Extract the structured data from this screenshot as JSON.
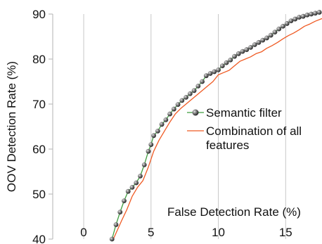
{
  "chart_data": {
    "type": "line",
    "title": "",
    "xlabel": "False Detection Rate (%)",
    "ylabel": "OOV Detection Rate (%)",
    "xlim": [
      -2.3,
      17.7
    ],
    "ylim": [
      40,
      90
    ],
    "xticks": [
      0,
      5,
      10,
      15
    ],
    "yticks": [
      40,
      50,
      60,
      70,
      80,
      90
    ],
    "grid": "vertical",
    "legend_position": "center-right",
    "series": [
      {
        "name": "Semantic filter",
        "color": "#3f9e3f",
        "marker": "sphere",
        "x": [
          2.1,
          2.4,
          2.7,
          3.0,
          3.3,
          3.6,
          3.9,
          4.2,
          4.5,
          4.8,
          5.0,
          5.2,
          5.5,
          5.8,
          6.1,
          6.4,
          6.7,
          7.0,
          7.3,
          7.6,
          7.9,
          8.2,
          8.5,
          8.8,
          9.1,
          9.4,
          9.7,
          10.0,
          10.3,
          10.6,
          10.9,
          11.2,
          11.5,
          11.8,
          12.1,
          12.4,
          12.7,
          13.0,
          13.3,
          13.6,
          13.9,
          14.2,
          14.5,
          14.8,
          15.1,
          15.4,
          15.7,
          16.0,
          16.3,
          16.6,
          16.9,
          17.2,
          17.5
        ],
        "y": [
          40.0,
          43.2,
          46.0,
          48.5,
          50.6,
          51.5,
          52.5,
          54.0,
          56.5,
          59.5,
          61.0,
          63.0,
          64.0,
          65.5,
          66.5,
          67.8,
          68.9,
          69.9,
          70.8,
          71.5,
          72.3,
          73.0,
          74.0,
          75.0,
          76.3,
          76.8,
          77.2,
          77.6,
          78.5,
          79.2,
          79.8,
          80.6,
          81.2,
          81.7,
          82.1,
          82.6,
          83.2,
          83.7,
          84.2,
          84.7,
          85.3,
          86.0,
          86.7,
          87.3,
          87.9,
          88.5,
          88.9,
          89.3,
          89.5,
          89.8,
          90.0,
          90.2,
          90.4
        ],
        "line_through_markers": true
      },
      {
        "name": "Combination of all features",
        "color": "#ef5a23",
        "marker": "none",
        "x": [
          2.2,
          2.8,
          3.2,
          3.6,
          4.0,
          4.4,
          4.8,
          5.2,
          5.6,
          6.0,
          6.4,
          6.8,
          7.2,
          7.6,
          8.0,
          8.4,
          8.8,
          9.2,
          9.6,
          10.0,
          10.4,
          10.8,
          11.2,
          11.6,
          12.0,
          12.4,
          12.8,
          13.2,
          13.6,
          14.0,
          14.4,
          14.8,
          15.2,
          15.6,
          16.0,
          16.4,
          16.8,
          17.2,
          17.7
        ],
        "y": [
          40.0,
          44.0,
          46.5,
          49.5,
          51.5,
          53.0,
          56.0,
          59.5,
          62.0,
          64.0,
          66.0,
          67.8,
          69.0,
          70.0,
          71.0,
          72.0,
          73.0,
          74.0,
          75.0,
          76.5,
          77.0,
          77.5,
          78.5,
          79.5,
          80.0,
          80.5,
          81.2,
          81.6,
          82.4,
          83.0,
          83.7,
          84.5,
          85.2,
          85.8,
          86.5,
          87.3,
          87.8,
          88.4,
          89.0
        ]
      }
    ]
  }
}
